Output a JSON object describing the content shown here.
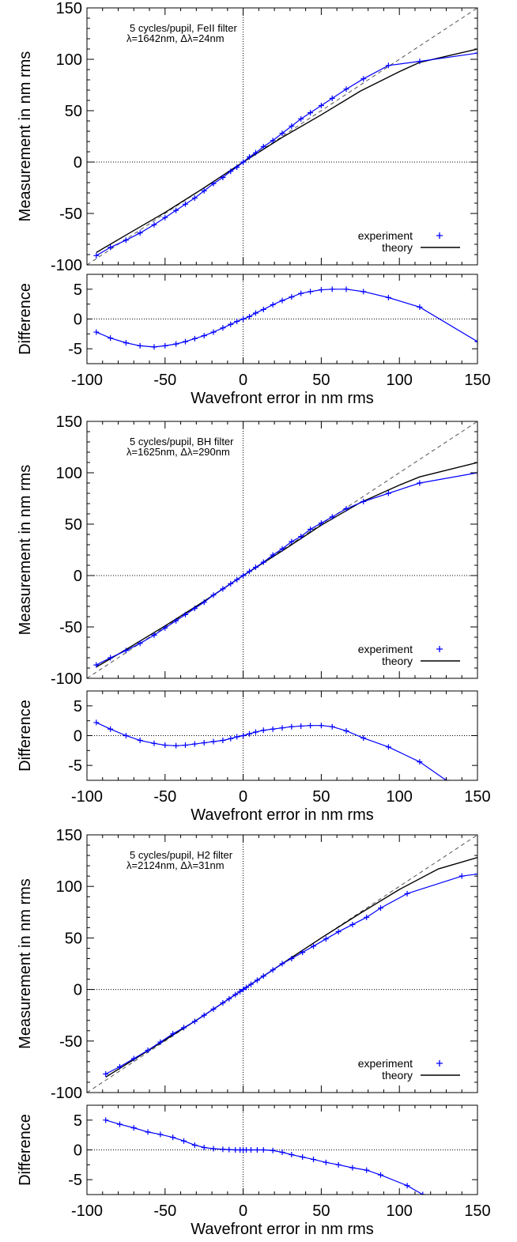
{
  "figure": {
    "colors": {
      "experiment": "#0000ff",
      "theory": "#000000",
      "reference": "#555555",
      "axis": "#000000"
    }
  },
  "chart_data": [
    {
      "type": "line",
      "annotation_line1": "5 cycles/pupil, FeII filter",
      "annotation_line2": "λ=1642nm, Δλ=24nm",
      "ylabel": "Measurement in nm rms",
      "xlabel": "Wavefront error in nm rms",
      "xlim": [
        -100,
        150
      ],
      "ylim": [
        -100,
        150
      ],
      "xticks": [
        -100,
        -50,
        0,
        50,
        100,
        150
      ],
      "yticks": [
        -100,
        -50,
        0,
        50,
        100,
        150
      ],
      "grid": false,
      "legend": {
        "location": "bottom-right",
        "experiment_label": "experiment",
        "theory_label": "theory"
      },
      "series": [
        {
          "name": "experiment",
          "marker": "+",
          "x": [
            -94,
            -85,
            -75,
            -66,
            -57,
            -50,
            -43,
            -37,
            -31,
            -25,
            -19,
            -13,
            -8,
            -4,
            0,
            4,
            8,
            13,
            19,
            25,
            31,
            37,
            43,
            50,
            57,
            66,
            77,
            93,
            113,
            150
          ],
          "y": [
            -91,
            -83,
            -76,
            -69,
            -61,
            -54,
            -47,
            -41,
            -35,
            -28,
            -21,
            -15,
            -9,
            -5,
            0,
            5,
            9,
            15,
            21,
            28,
            35,
            42,
            48,
            55,
            62,
            71,
            81,
            94,
            98,
            106
          ]
        },
        {
          "name": "theory",
          "x": [
            -94,
            -75,
            -50,
            -25,
            0,
            25,
            50,
            75,
            100,
            113,
            150
          ],
          "y": [
            -88,
            -71,
            -49,
            -25,
            0,
            24,
            46,
            69,
            88,
            97,
            110
          ]
        }
      ],
      "difference": {
        "ylabel": "Difference",
        "ylim": [
          -7.5,
          7.5
        ],
        "yticks": [
          -5,
          0,
          5
        ],
        "x": [
          -94,
          -85,
          -75,
          -66,
          -57,
          -50,
          -43,
          -37,
          -31,
          -25,
          -19,
          -13,
          -8,
          -4,
          0,
          4,
          8,
          13,
          19,
          25,
          31,
          37,
          43,
          50,
          57,
          66,
          77,
          93,
          113,
          150
        ],
        "y": [
          -2.2,
          -3.2,
          -4.0,
          -4.5,
          -4.7,
          -4.5,
          -4.2,
          -3.8,
          -3.3,
          -2.8,
          -2.2,
          -1.5,
          -0.9,
          -0.4,
          0,
          0.4,
          1.0,
          1.6,
          2.4,
          3.1,
          3.7,
          4.3,
          4.6,
          4.9,
          5.0,
          5.0,
          4.6,
          3.6,
          2.0,
          -3.8
        ]
      }
    },
    {
      "type": "line",
      "annotation_line1": "5 cycles/pupil, BH filter",
      "annotation_line2": "λ=1625nm, Δλ=290nm",
      "ylabel": "Measurement in nm rms",
      "xlabel": "Wavefront error in nm rms",
      "xlim": [
        -100,
        150
      ],
      "ylim": [
        -100,
        150
      ],
      "xticks": [
        -100,
        -50,
        0,
        50,
        100,
        150
      ],
      "yticks": [
        -100,
        -50,
        0,
        50,
        100,
        150
      ],
      "grid": false,
      "legend": {
        "location": "bottom-right",
        "experiment_label": "experiment",
        "theory_label": "theory"
      },
      "series": [
        {
          "name": "experiment",
          "marker": "+",
          "x": [
            -94,
            -85,
            -75,
            -66,
            -57,
            -50,
            -43,
            -37,
            -31,
            -25,
            -19,
            -13,
            -8,
            -4,
            0,
            4,
            8,
            13,
            19,
            25,
            31,
            37,
            43,
            50,
            57,
            66,
            77,
            93,
            113,
            150
          ],
          "y": [
            -87,
            -80,
            -73,
            -66,
            -58,
            -51,
            -44,
            -38,
            -32,
            -26,
            -19,
            -13,
            -8,
            -4,
            0,
            4,
            8,
            13,
            20,
            26,
            33,
            38,
            45,
            51,
            57,
            65,
            72,
            80,
            90,
            100
          ]
        },
        {
          "name": "theory",
          "x": [
            -94,
            -75,
            -50,
            -25,
            0,
            25,
            50,
            75,
            100,
            113,
            150
          ],
          "y": [
            -89,
            -72,
            -49,
            -25,
            0,
            24,
            49,
            71,
            88,
            96,
            110
          ]
        }
      ],
      "difference": {
        "ylabel": "Difference",
        "ylim": [
          -7.5,
          7.5
        ],
        "yticks": [
          -5,
          0,
          5
        ],
        "x": [
          -94,
          -85,
          -75,
          -66,
          -57,
          -50,
          -43,
          -37,
          -31,
          -25,
          -19,
          -13,
          -8,
          -4,
          0,
          4,
          8,
          13,
          19,
          25,
          31,
          37,
          43,
          50,
          57,
          66,
          77,
          93,
          113,
          130
        ],
        "y": [
          2.2,
          1.1,
          0.0,
          -0.8,
          -1.3,
          -1.6,
          -1.7,
          -1.6,
          -1.4,
          -1.2,
          -1.0,
          -0.8,
          -0.5,
          -0.2,
          0,
          0.3,
          0.6,
          0.9,
          1.1,
          1.3,
          1.5,
          1.6,
          1.7,
          1.7,
          1.5,
          0.8,
          -0.4,
          -1.9,
          -4.4,
          -7.5
        ]
      }
    },
    {
      "type": "line",
      "annotation_line1": "5 cycles/pupil, H2 filter",
      "annotation_line2": "λ=2124nm, Δλ=31nm",
      "ylabel": "Measurement in nm rms",
      "xlabel": "Wavefront error in nm rms",
      "xlim": [
        -100,
        150
      ],
      "ylim": [
        -100,
        150
      ],
      "xticks": [
        -100,
        -50,
        0,
        50,
        100,
        150
      ],
      "yticks": [
        -100,
        -50,
        0,
        50,
        100,
        150
      ],
      "grid": false,
      "legend": {
        "location": "bottom-right",
        "experiment_label": "experiment",
        "theory_label": "theory"
      },
      "series": [
        {
          "name": "experiment",
          "marker": "+",
          "x": [
            -88,
            -79,
            -70,
            -61,
            -53,
            -45,
            -38,
            -31,
            -25,
            -19,
            -13,
            -9,
            -5,
            -2,
            0,
            2,
            5,
            9,
            13,
            19,
            25,
            31,
            38,
            45,
            53,
            61,
            70,
            79,
            88,
            105,
            140,
            150
          ],
          "y": [
            -82,
            -75,
            -67,
            -59,
            -51,
            -43,
            -37,
            -31,
            -25,
            -19,
            -13,
            -9,
            -5,
            -2,
            0,
            2,
            5,
            9,
            13,
            19,
            25,
            30,
            36,
            42,
            49,
            56,
            63,
            70,
            79,
            93,
            110,
            112
          ]
        },
        {
          "name": "theory",
          "x": [
            -88,
            -70,
            -50,
            -25,
            0,
            25,
            50,
            75,
            100,
            125,
            150
          ],
          "y": [
            -85,
            -68,
            -49,
            -25,
            0,
            25,
            50,
            74,
            97,
            117,
            128
          ]
        }
      ],
      "difference": {
        "ylabel": "Difference",
        "ylim": [
          -7.5,
          7.5
        ],
        "yticks": [
          -5,
          0,
          5
        ],
        "x": [
          -88,
          -79,
          -70,
          -61,
          -53,
          -45,
          -38,
          -31,
          -25,
          -19,
          -13,
          -9,
          -5,
          -2,
          0,
          2,
          5,
          9,
          13,
          19,
          25,
          31,
          38,
          45,
          53,
          61,
          70,
          79,
          88,
          105,
          115
        ],
        "y": [
          5.0,
          4.3,
          3.7,
          3.0,
          2.6,
          2.1,
          1.5,
          0.8,
          0.4,
          0.2,
          0.1,
          0.05,
          0.0,
          0.0,
          0,
          0.0,
          0.0,
          0.0,
          0.0,
          -0.1,
          -0.4,
          -0.8,
          -1.2,
          -1.6,
          -2.1,
          -2.5,
          -3.0,
          -3.4,
          -4.2,
          -6.0,
          -7.5
        ]
      }
    }
  ]
}
